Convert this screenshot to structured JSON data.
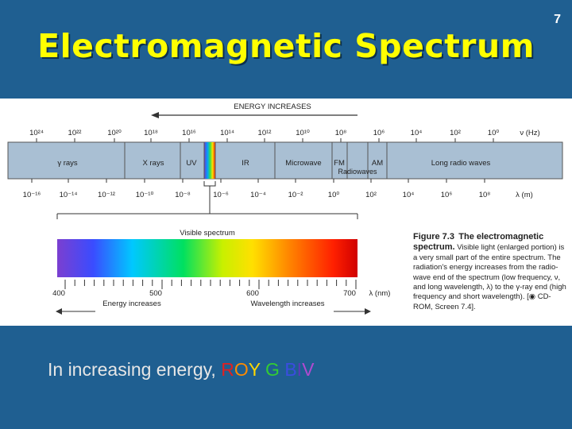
{
  "slide_number": "7",
  "title": "Electromagnetic Spectrum",
  "figure": {
    "energy_label": "ENERGY INCREASES",
    "freq_ticks": [
      "10²⁴",
      "10²²",
      "10²⁰",
      "10¹⁸",
      "10¹⁶",
      "10¹⁴",
      "10¹²",
      "10¹⁰",
      "10⁸",
      "10⁶",
      "10⁴",
      "10²",
      "10⁰"
    ],
    "freq_unit": "ν (Hz)",
    "wave_ticks": [
      "10⁻¹⁶",
      "10⁻¹⁴",
      "10⁻¹²",
      "10⁻¹⁰",
      "10⁻⁸",
      "10⁻⁶",
      "10⁻⁴",
      "10⁻²",
      "10⁰",
      "10²",
      "10⁴",
      "10⁶",
      "10⁸"
    ],
    "wave_unit": "λ (m)",
    "regions": [
      "γ rays",
      "X rays",
      "UV",
      "IR",
      "Microwave",
      "FM",
      "AM",
      "Long radio waves"
    ],
    "radiowaves_label": "Radiowaves",
    "visible_label": "Visible spectrum",
    "visible_ticks": [
      "400",
      "500",
      "600",
      "700"
    ],
    "visible_unit": "λ (nm)",
    "energy_increases_label": "Energy increases",
    "wavelength_increases_label": "Wavelength increases",
    "caption_label": "Figure 7.3",
    "caption_title": "The electromagnetic spectrum.",
    "caption_body": "Visible light (enlarged portion) is a very small part of the entire spectrum. The radiation's energy increases from the radio-wave end of the spectrum (low frequency, ν, and long wavelength, λ) to the γ-ray end (high frequency and short wavelength). [",
    "caption_ref": "CD-ROM, Screen 7.4]."
  },
  "caption": {
    "text": "In increasing energy, ",
    "letters": [
      "R",
      "O",
      "Y",
      " ",
      "G",
      " ",
      "B",
      "I",
      "V"
    ],
    "colors": [
      "#e02020",
      "#ff8a00",
      "#ffd800",
      "",
      "#33cc33",
      "",
      "#3a4de0",
      "#5a3ab8",
      "#b04ad0"
    ]
  }
}
